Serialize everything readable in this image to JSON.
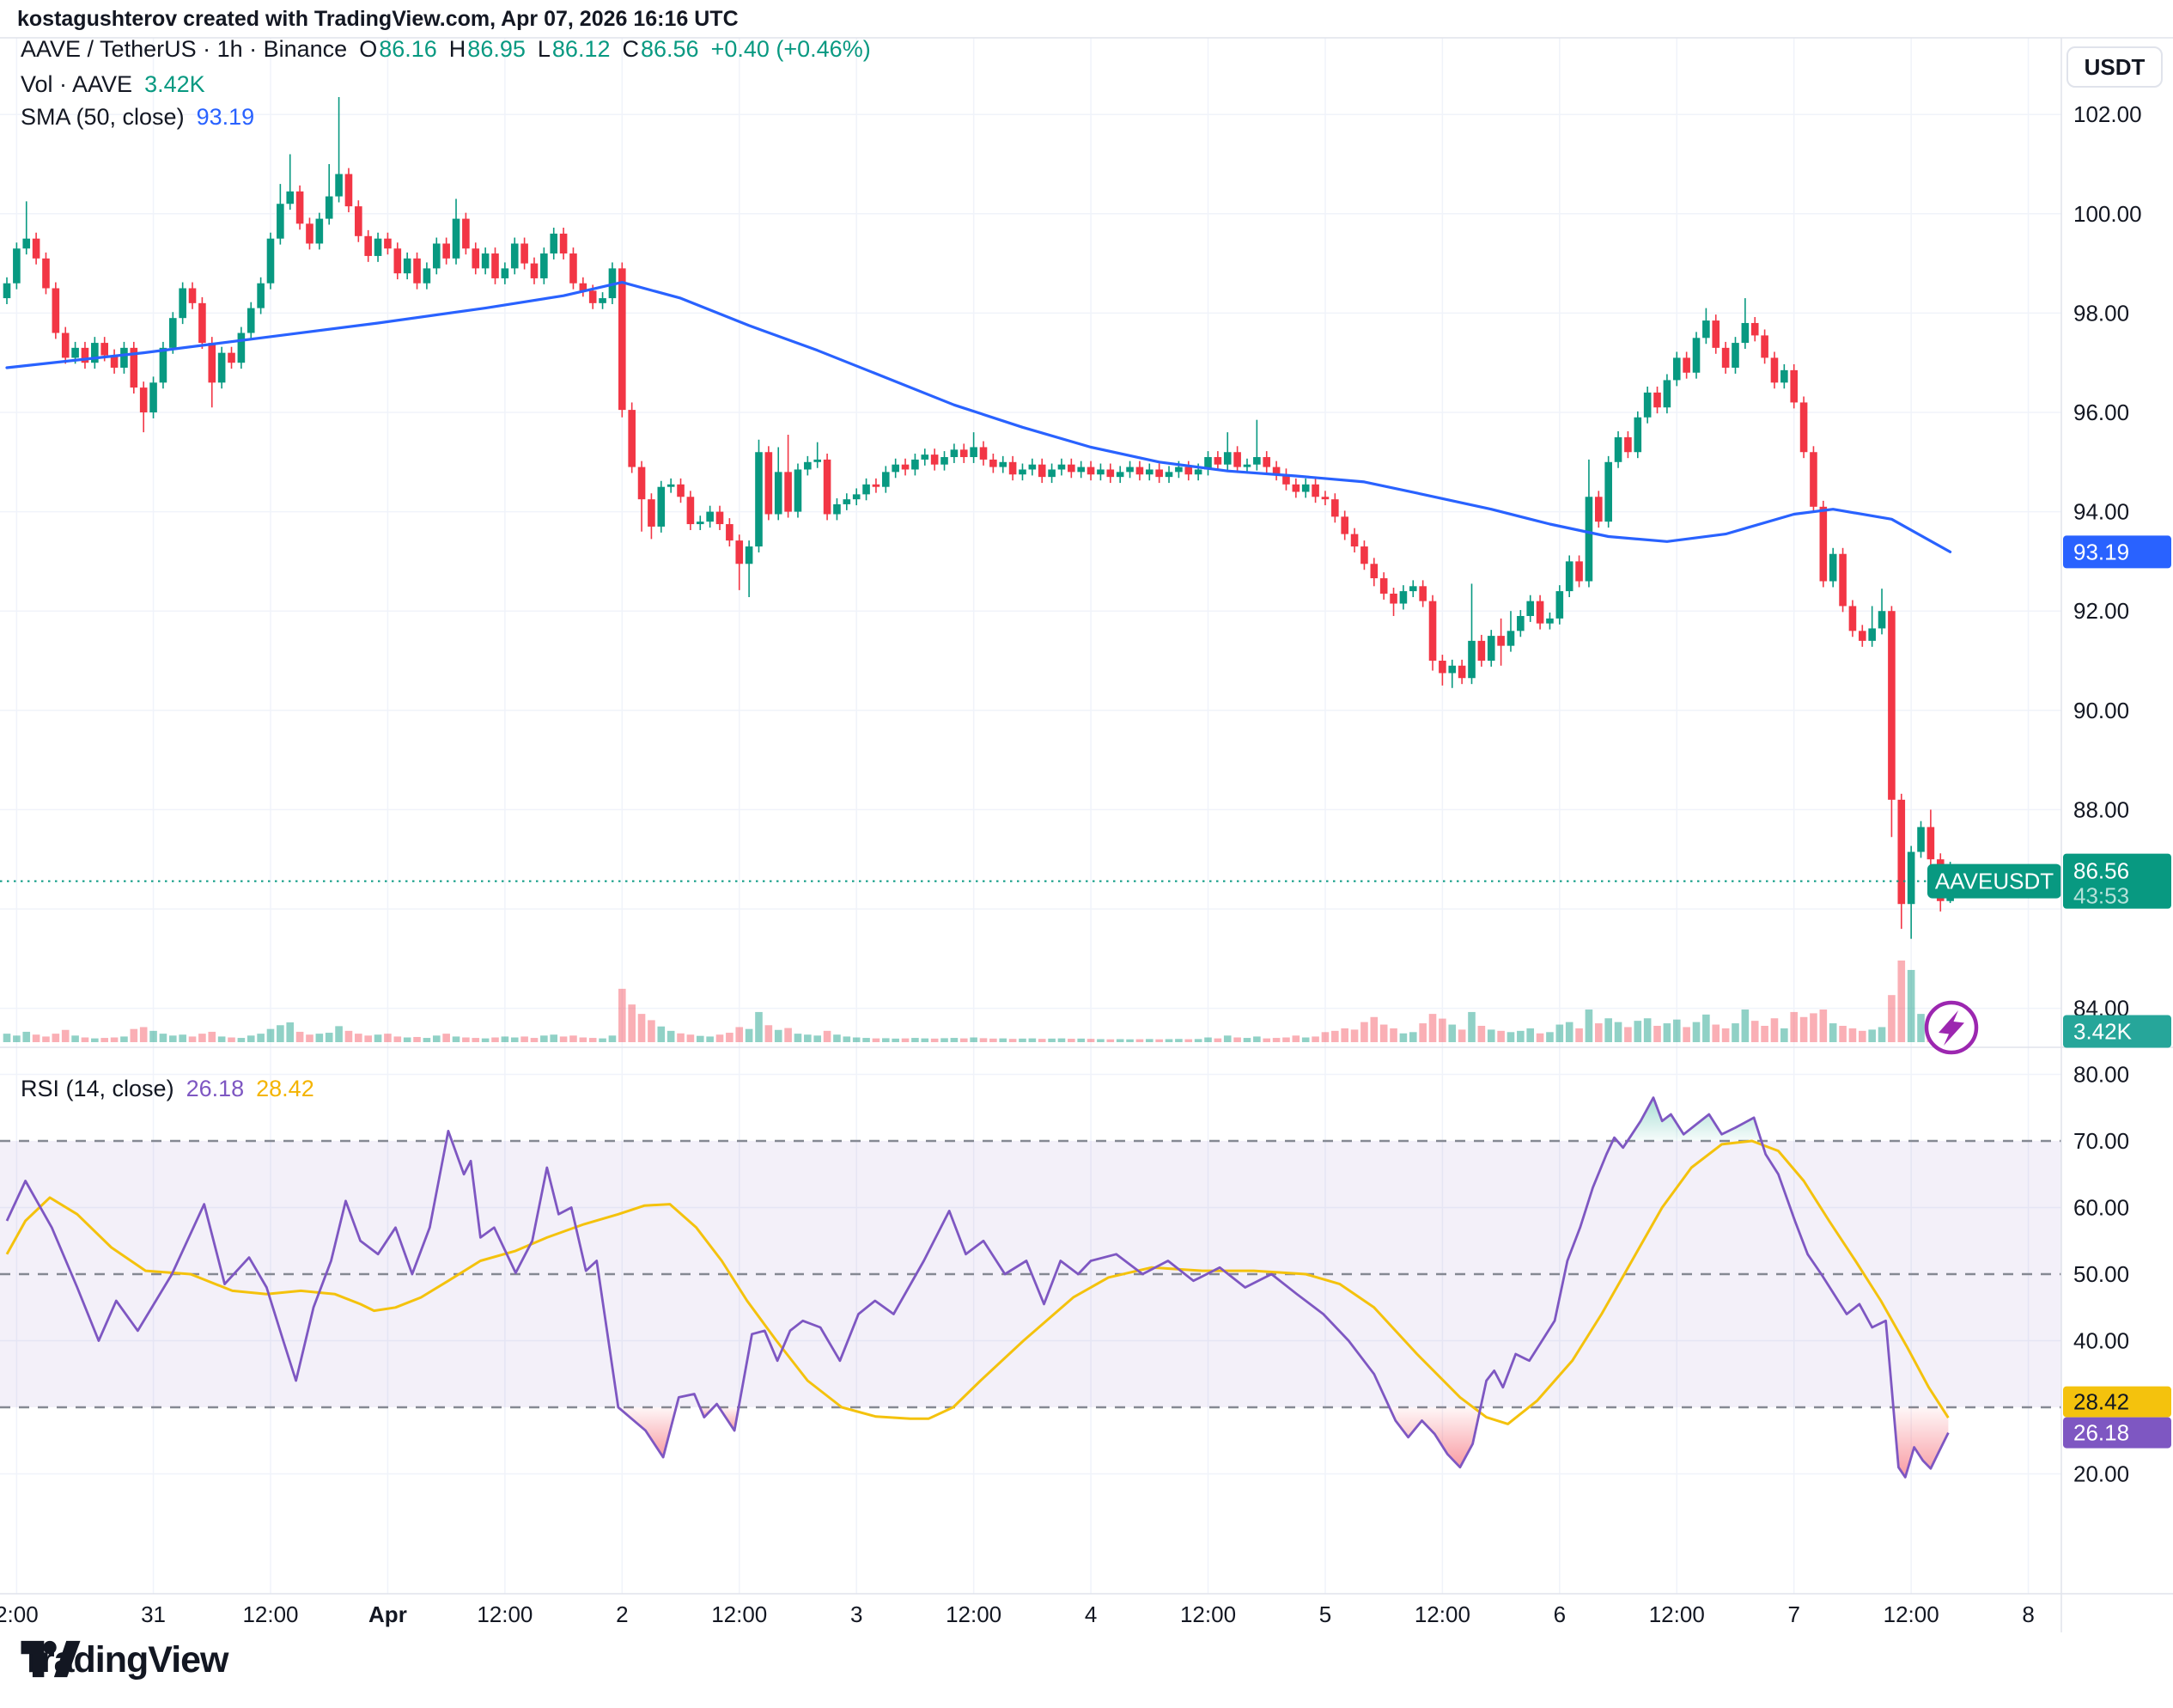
{
  "watermark": "kostagushterov created with TradingView.com, Apr 07, 2026 16:16 UTC",
  "legend": {
    "symbol_line": "AAVE / TetherUS · 1h · Binance",
    "ohlc": [
      {
        "label": "O",
        "value": "86.16"
      },
      {
        "label": "H",
        "value": "86.95"
      },
      {
        "label": "L",
        "value": "86.12"
      },
      {
        "label": "C",
        "value": "86.56"
      }
    ],
    "change": "+0.40 (+0.46%)",
    "vol_label": "Vol · AAVE",
    "vol_value": "3.42K",
    "sma_label": "SMA (50, close)",
    "sma_value": "93.19"
  },
  "rsi_legend": {
    "label": "RSI (14, close)",
    "value1": "26.18",
    "value2": "28.42"
  },
  "axis": {
    "currency_button": "USDT",
    "symbol_tag": "AAVEUSDT",
    "badges": {
      "sma": "93.19",
      "price": "86.56",
      "countdown": "43:53",
      "volume": "3.42K",
      "rsi_ma": "28.42",
      "rsi": "26.18"
    }
  },
  "footer": {
    "brand": "TradingView"
  },
  "colors": {
    "text": "#131722",
    "grid": "#f0f3fa",
    "axis_border": "#e0e3eb",
    "up": "#089981",
    "down": "#f23645",
    "vol_up": "rgba(8,153,129,0.45)",
    "vol_down": "rgba(242,54,69,0.4)",
    "sma": "#2962ff",
    "rsi": "#7e57c2",
    "rsi_ma": "#f4c20d",
    "band": "rgba(126,87,194,0.09)",
    "dash": "#858993",
    "badge_blue": "#2962ff",
    "badge_green": "#089981",
    "badge_teal": "#26a69a",
    "badge_yellow": "#f4c20d",
    "badge_purple": "#7e57c2",
    "oversold": "#f23645",
    "overbought": "#22ab94",
    "bolt": "#9c27b0"
  },
  "chart_data": {
    "type": "candlestick+volume+rsi",
    "symbol": "AAVE/TetherUS",
    "exchange": "Binance",
    "timeframe": "1h",
    "start_time": "Mar 30 09:00",
    "interval_hours": 1,
    "current_price": 86.56,
    "current_countdown": "43:53",
    "sma50_last": 93.19,
    "rsi_last": 26.18,
    "rsi_ma_last": 28.42,
    "volume_last": 3420,
    "price_ticks_labels": [
      102,
      100,
      98,
      96,
      94,
      92,
      90,
      88,
      84
    ],
    "price_grid": [
      102,
      100,
      98,
      96,
      94,
      92,
      90,
      88,
      86,
      84
    ],
    "rsi_ticks_labels": [
      80,
      70,
      60,
      50,
      40,
      20
    ],
    "rsi_grid_solid": [
      80,
      60,
      40,
      20
    ],
    "rsi_grid_dashed": [
      70,
      50,
      30
    ],
    "time_axis": [
      {
        "i": 1,
        "label": "2:00"
      },
      {
        "i": 15,
        "label": "31"
      },
      {
        "i": 27,
        "label": "12:00"
      },
      {
        "i": 39,
        "label": "Apr",
        "bold": true
      },
      {
        "i": 51,
        "label": "12:00"
      },
      {
        "i": 63,
        "label": "2"
      },
      {
        "i": 75,
        "label": "12:00"
      },
      {
        "i": 87,
        "label": "3"
      },
      {
        "i": 99,
        "label": "12:00"
      },
      {
        "i": 111,
        "label": "4"
      },
      {
        "i": 123,
        "label": "12:00"
      },
      {
        "i": 135,
        "label": "5"
      },
      {
        "i": 147,
        "label": "12:00"
      },
      {
        "i": 159,
        "label": "6"
      },
      {
        "i": 171,
        "label": "12:00"
      },
      {
        "i": 183,
        "label": "7"
      },
      {
        "i": 195,
        "label": "12:00"
      },
      {
        "i": 207,
        "label": "8"
      }
    ],
    "first_open": 98.3,
    "closes": [
      98.6,
      99.3,
      99.5,
      99.1,
      98.5,
      97.6,
      97.1,
      97.3,
      97.0,
      97.4,
      97.15,
      96.9,
      97.3,
      96.5,
      96.0,
      96.6,
      97.3,
      97.9,
      98.5,
      98.2,
      97.4,
      96.6,
      97.2,
      97.0,
      97.6,
      98.1,
      98.6,
      99.5,
      100.2,
      100.45,
      99.8,
      99.4,
      99.9,
      100.35,
      100.8,
      100.15,
      99.55,
      99.15,
      99.5,
      99.3,
      98.8,
      99.1,
      98.6,
      98.9,
      99.4,
      99.1,
      99.9,
      99.3,
      98.9,
      99.2,
      98.7,
      98.9,
      99.4,
      99.0,
      98.7,
      99.2,
      99.6,
      99.2,
      98.6,
      98.45,
      98.2,
      98.3,
      98.9,
      96.05,
      94.9,
      94.25,
      93.7,
      94.5,
      94.55,
      94.3,
      93.75,
      93.8,
      94.0,
      93.75,
      93.42,
      92.95,
      93.3,
      95.2,
      93.95,
      94.8,
      94.0,
      94.85,
      95.0,
      95.05,
      93.95,
      94.15,
      94.25,
      94.35,
      94.55,
      94.5,
      94.8,
      94.95,
      94.85,
      95.05,
      95.15,
      94.95,
      95.1,
      95.25,
      95.1,
      95.3,
      95.05,
      94.9,
      95.0,
      94.75,
      94.85,
      94.95,
      94.7,
      94.85,
      94.95,
      94.8,
      94.9,
      94.75,
      94.85,
      94.7,
      94.8,
      94.9,
      94.75,
      94.85,
      94.7,
      94.8,
      94.9,
      94.75,
      94.85,
      95.1,
      94.95,
      95.2,
      94.9,
      94.95,
      95.1,
      94.9,
      94.75,
      94.55,
      94.4,
      94.55,
      94.3,
      94.25,
      93.9,
      93.55,
      93.3,
      92.95,
      92.66,
      92.35,
      92.15,
      92.4,
      92.5,
      92.2,
      91.0,
      90.75,
      90.9,
      90.65,
      91.4,
      91.0,
      91.5,
      91.3,
      91.6,
      91.9,
      92.2,
      91.75,
      91.85,
      92.4,
      93.0,
      92.6,
      94.3,
      93.8,
      95.0,
      95.5,
      95.2,
      95.9,
      96.4,
      96.1,
      96.65,
      97.1,
      96.8,
      97.5,
      97.85,
      97.3,
      96.9,
      97.4,
      97.8,
      97.55,
      97.1,
      96.6,
      96.85,
      96.2,
      95.2,
      94.1,
      92.6,
      93.15,
      92.1,
      91.6,
      91.4,
      91.65,
      92.0,
      88.2,
      86.1,
      87.15,
      87.65,
      87.0,
      86.16,
      86.56
    ],
    "wick_overrides": {
      "2": {
        "h": 100.25
      },
      "14": {
        "l": 95.6
      },
      "21": {
        "l": 96.1
      },
      "28": {
        "h": 100.6
      },
      "29": {
        "h": 101.2
      },
      "33": {
        "h": 101.0
      },
      "34": {
        "h": 102.35
      },
      "46": {
        "h": 100.3
      },
      "63": {
        "l": 95.9
      },
      "64": {
        "h": 96.2
      },
      "65": {
        "l": 93.6
      },
      "66": {
        "l": 93.45
      },
      "75": {
        "l": 92.42
      },
      "76": {
        "l": 92.28
      },
      "77": {
        "h": 95.45
      },
      "79": {
        "h": 95.3
      },
      "80": {
        "h": 95.55
      },
      "83": {
        "h": 95.4
      },
      "99": {
        "h": 95.6
      },
      "125": {
        "h": 95.6
      },
      "128": {
        "h": 95.85
      },
      "140": {
        "l": 92.5
      },
      "142": {
        "l": 91.9
      },
      "146": {
        "l": 90.8
      },
      "147": {
        "l": 90.5
      },
      "148": {
        "l": 90.45
      },
      "150": {
        "h": 92.55
      },
      "153": {
        "h": 91.85,
        "l": 90.9
      },
      "154": {
        "h": 92.0
      },
      "162": {
        "h": 95.05
      },
      "174": {
        "h": 98.1
      },
      "178": {
        "h": 98.3
      },
      "191": {
        "h": 92.1
      },
      "192": {
        "h": 92.45
      },
      "193": {
        "l": 87.45,
        "h": 92.1
      },
      "194": {
        "l": 85.6
      },
      "195": {
        "l": 85.4
      },
      "197": {
        "h": 88.0
      },
      "198": {
        "l": 85.95
      },
      "199": {
        "h": 86.95,
        "l": 86.12
      }
    },
    "volumes": [
      2700,
      2100,
      3300,
      2400,
      1800,
      2700,
      3900,
      2100,
      1500,
      1200,
      1350,
      1500,
      1800,
      4200,
      4800,
      3600,
      2700,
      2100,
      2400,
      1800,
      2700,
      3300,
      1800,
      1500,
      1350,
      2100,
      2700,
      4200,
      5400,
      6300,
      3300,
      2400,
      2700,
      3000,
      5100,
      3600,
      2700,
      2100,
      2400,
      2700,
      1800,
      1500,
      1650,
      1350,
      2100,
      2700,
      1800,
      1500,
      1350,
      1200,
      1500,
      1800,
      1500,
      1800,
      1350,
      2100,
      2400,
      1800,
      2100,
      1500,
      1350,
      1200,
      2100,
      17000,
      12000,
      9000,
      7000,
      5000,
      3600,
      2800,
      2400,
      2000,
      1800,
      2400,
      3000,
      4800,
      4200,
      9600,
      5400,
      3900,
      4500,
      2700,
      2400,
      2100,
      3600,
      2400,
      1800,
      1500,
      1350,
      1200,
      1260,
      1140,
      1200,
      1350,
      1200,
      1140,
      1260,
      1350,
      1200,
      1500,
      1260,
      1140,
      1200,
      1050,
      1140,
      1200,
      1050,
      1140,
      1200,
      1080,
      1140,
      1050,
      960,
      900,
      960,
      900,
      930,
      990,
      900,
      960,
      1020,
      930,
      990,
      1500,
      1200,
      2100,
      1500,
      1350,
      1800,
      1200,
      1350,
      1500,
      2100,
      1500,
      1800,
      3200,
      3600,
      4400,
      4000,
      6400,
      8000,
      5600,
      4400,
      2800,
      3200,
      6000,
      9000,
      7500,
      5600,
      4000,
      9600,
      5200,
      4000,
      3600,
      3200,
      3600,
      4400,
      2800,
      3200,
      5600,
      6400,
      4400,
      10400,
      6000,
      7600,
      6400,
      4800,
      6800,
      7600,
      5200,
      6000,
      7200,
      4800,
      6400,
      8800,
      5600,
      4400,
      6000,
      10400,
      6800,
      5200,
      7600,
      4400,
      9600,
      8000,
      9200,
      10400,
      6000,
      5200,
      4400,
      3600,
      4000,
      4800,
      15000,
      26000,
      23000,
      9000,
      7000,
      5500,
      3420
    ],
    "sma50_anchors": [
      [
        0,
        96.9
      ],
      [
        14,
        97.2
      ],
      [
        28,
        97.55
      ],
      [
        38,
        97.8
      ],
      [
        49,
        98.1
      ],
      [
        57,
        98.35
      ],
      [
        63,
        98.62
      ],
      [
        69,
        98.3
      ],
      [
        76,
        97.75
      ],
      [
        83,
        97.25
      ],
      [
        90,
        96.7
      ],
      [
        97,
        96.15
      ],
      [
        104,
        95.7
      ],
      [
        111,
        95.3
      ],
      [
        118,
        95.0
      ],
      [
        125,
        94.82
      ],
      [
        132,
        94.72
      ],
      [
        139,
        94.6
      ],
      [
        145,
        94.35
      ],
      [
        152,
        94.05
      ],
      [
        158,
        93.75
      ],
      [
        164,
        93.5
      ],
      [
        170,
        93.4
      ],
      [
        176,
        93.55
      ],
      [
        183,
        93.95
      ],
      [
        187,
        94.05
      ],
      [
        193,
        93.85
      ],
      [
        199,
        93.19
      ]
    ],
    "rsi_anchors": [
      [
        0,
        58
      ],
      [
        1.9,
        64
      ],
      [
        4.6,
        57
      ],
      [
        7.2,
        48
      ],
      [
        9.4,
        40
      ],
      [
        11.2,
        46
      ],
      [
        13.4,
        41.5
      ],
      [
        16.9,
        50
      ],
      [
        20.2,
        60.5
      ],
      [
        22.3,
        48.5
      ],
      [
        24.8,
        52.5
      ],
      [
        26.6,
        48
      ],
      [
        28.3,
        40
      ],
      [
        29.6,
        34
      ],
      [
        31.4,
        45
      ],
      [
        33.2,
        52
      ],
      [
        34.7,
        61
      ],
      [
        36.2,
        55
      ],
      [
        38,
        53
      ],
      [
        39.8,
        57
      ],
      [
        41.5,
        50
      ],
      [
        43.3,
        57
      ],
      [
        45.2,
        71.5
      ],
      [
        46.8,
        65
      ],
      [
        47.5,
        67
      ],
      [
        48.5,
        55.5
      ],
      [
        49.9,
        57
      ],
      [
        52.1,
        50.2
      ],
      [
        53.8,
        55
      ],
      [
        55.3,
        66
      ],
      [
        56.5,
        59
      ],
      [
        57.8,
        60
      ],
      [
        59.3,
        50.5
      ],
      [
        60.4,
        52
      ],
      [
        61.3,
        43
      ],
      [
        62.6,
        30
      ],
      [
        65.4,
        26.5
      ],
      [
        67.2,
        22.5
      ],
      [
        68.8,
        31.5
      ],
      [
        70.4,
        32
      ],
      [
        71.4,
        28.5
      ],
      [
        72.7,
        30.5
      ],
      [
        74.5,
        26.5
      ],
      [
        76.3,
        41
      ],
      [
        77.6,
        41.5
      ],
      [
        78.9,
        37
      ],
      [
        80.2,
        41.5
      ],
      [
        81.5,
        43
      ],
      [
        83.3,
        42
      ],
      [
        85.3,
        37
      ],
      [
        87.2,
        44
      ],
      [
        88.9,
        46
      ],
      [
        90.8,
        44
      ],
      [
        93.9,
        52
      ],
      [
        96.5,
        59.5
      ],
      [
        98.2,
        53
      ],
      [
        100,
        55
      ],
      [
        102.2,
        50
      ],
      [
        104.4,
        52
      ],
      [
        106.2,
        45.5
      ],
      [
        107.9,
        52
      ],
      [
        109.7,
        50
      ],
      [
        111,
        52
      ],
      [
        113.6,
        53
      ],
      [
        116.3,
        50
      ],
      [
        118.9,
        52
      ],
      [
        121.5,
        49
      ],
      [
        124.2,
        51
      ],
      [
        126.8,
        48
      ],
      [
        129.5,
        50
      ],
      [
        132.1,
        47
      ],
      [
        134.8,
        44
      ],
      [
        137.4,
        40
      ],
      [
        140,
        35
      ],
      [
        142.2,
        28
      ],
      [
        143.5,
        25.5
      ],
      [
        144.9,
        28
      ],
      [
        146.2,
        26
      ],
      [
        147.5,
        23
      ],
      [
        148.8,
        21
      ],
      [
        150.1,
        24.5
      ],
      [
        151.5,
        34
      ],
      [
        152.3,
        35.5
      ],
      [
        153.2,
        33
      ],
      [
        154.5,
        38
      ],
      [
        155.9,
        37
      ],
      [
        157.2,
        40
      ],
      [
        158.5,
        43
      ],
      [
        159.8,
        52
      ],
      [
        161.1,
        57
      ],
      [
        162.4,
        63
      ],
      [
        163.8,
        68
      ],
      [
        164.6,
        70.5
      ],
      [
        165.5,
        69
      ],
      [
        166.4,
        71
      ],
      [
        167.3,
        73
      ],
      [
        168.6,
        76.5
      ],
      [
        169.5,
        73
      ],
      [
        170.4,
        74
      ],
      [
        171.7,
        71
      ],
      [
        173,
        72.5
      ],
      [
        174.3,
        74
      ],
      [
        175.6,
        71
      ],
      [
        177,
        72
      ],
      [
        178.9,
        73.5
      ],
      [
        180.1,
        68
      ],
      [
        181.4,
        65
      ],
      [
        183.1,
        58
      ],
      [
        184.4,
        53
      ],
      [
        185.8,
        50
      ],
      [
        187.1,
        47
      ],
      [
        188.4,
        44
      ],
      [
        189.7,
        45.5
      ],
      [
        191,
        42
      ],
      [
        192.4,
        43
      ],
      [
        193,
        33
      ],
      [
        193.7,
        21
      ],
      [
        194.4,
        19.5
      ],
      [
        195.3,
        24
      ],
      [
        196.2,
        22
      ],
      [
        197,
        20.8
      ],
      [
        197.9,
        23.5
      ],
      [
        198.8,
        26.18
      ]
    ],
    "rsi_ma_anchors": [
      [
        0,
        53
      ],
      [
        1.9,
        58
      ],
      [
        4.4,
        61.5
      ],
      [
        7.2,
        59
      ],
      [
        10.7,
        54
      ],
      [
        14.2,
        50.5
      ],
      [
        18.8,
        50
      ],
      [
        23.1,
        47.5
      ],
      [
        26.6,
        47
      ],
      [
        30.1,
        47.5
      ],
      [
        33.6,
        47
      ],
      [
        36.2,
        45.5
      ],
      [
        37.6,
        44.5
      ],
      [
        39.8,
        45
      ],
      [
        42.4,
        46.5
      ],
      [
        45.2,
        49
      ],
      [
        48.5,
        52
      ],
      [
        52.1,
        53.5
      ],
      [
        55.3,
        55.5
      ],
      [
        59.1,
        57.5
      ],
      [
        62.6,
        59
      ],
      [
        65.3,
        60.3
      ],
      [
        67.9,
        60.5
      ],
      [
        70.6,
        57
      ],
      [
        73.2,
        52
      ],
      [
        75.8,
        46
      ],
      [
        78.8,
        40
      ],
      [
        82,
        34
      ],
      [
        85.5,
        30
      ],
      [
        89,
        28.6
      ],
      [
        92.5,
        28.3
      ],
      [
        94.4,
        28.3
      ],
      [
        96.9,
        30
      ],
      [
        99.7,
        34
      ],
      [
        104.1,
        40
      ],
      [
        109.2,
        46.5
      ],
      [
        112.8,
        49.5
      ],
      [
        117.2,
        51
      ],
      [
        122.4,
        50.5
      ],
      [
        127.7,
        50.5
      ],
      [
        133,
        50
      ],
      [
        136.5,
        48.5
      ],
      [
        140,
        45
      ],
      [
        144.4,
        38
      ],
      [
        148.8,
        31.5
      ],
      [
        151.5,
        28.5
      ],
      [
        153.7,
        27.5
      ],
      [
        156.7,
        31
      ],
      [
        160.3,
        37
      ],
      [
        163.3,
        44
      ],
      [
        166.4,
        52
      ],
      [
        169.5,
        60
      ],
      [
        172.5,
        66
      ],
      [
        175.6,
        69.5
      ],
      [
        178.7,
        70
      ],
      [
        181.4,
        68.5
      ],
      [
        184,
        64
      ],
      [
        186.6,
        58
      ],
      [
        189.3,
        52
      ],
      [
        191.9,
        46
      ],
      [
        194.6,
        39
      ],
      [
        196.8,
        33
      ],
      [
        198.8,
        28.42
      ]
    ]
  }
}
